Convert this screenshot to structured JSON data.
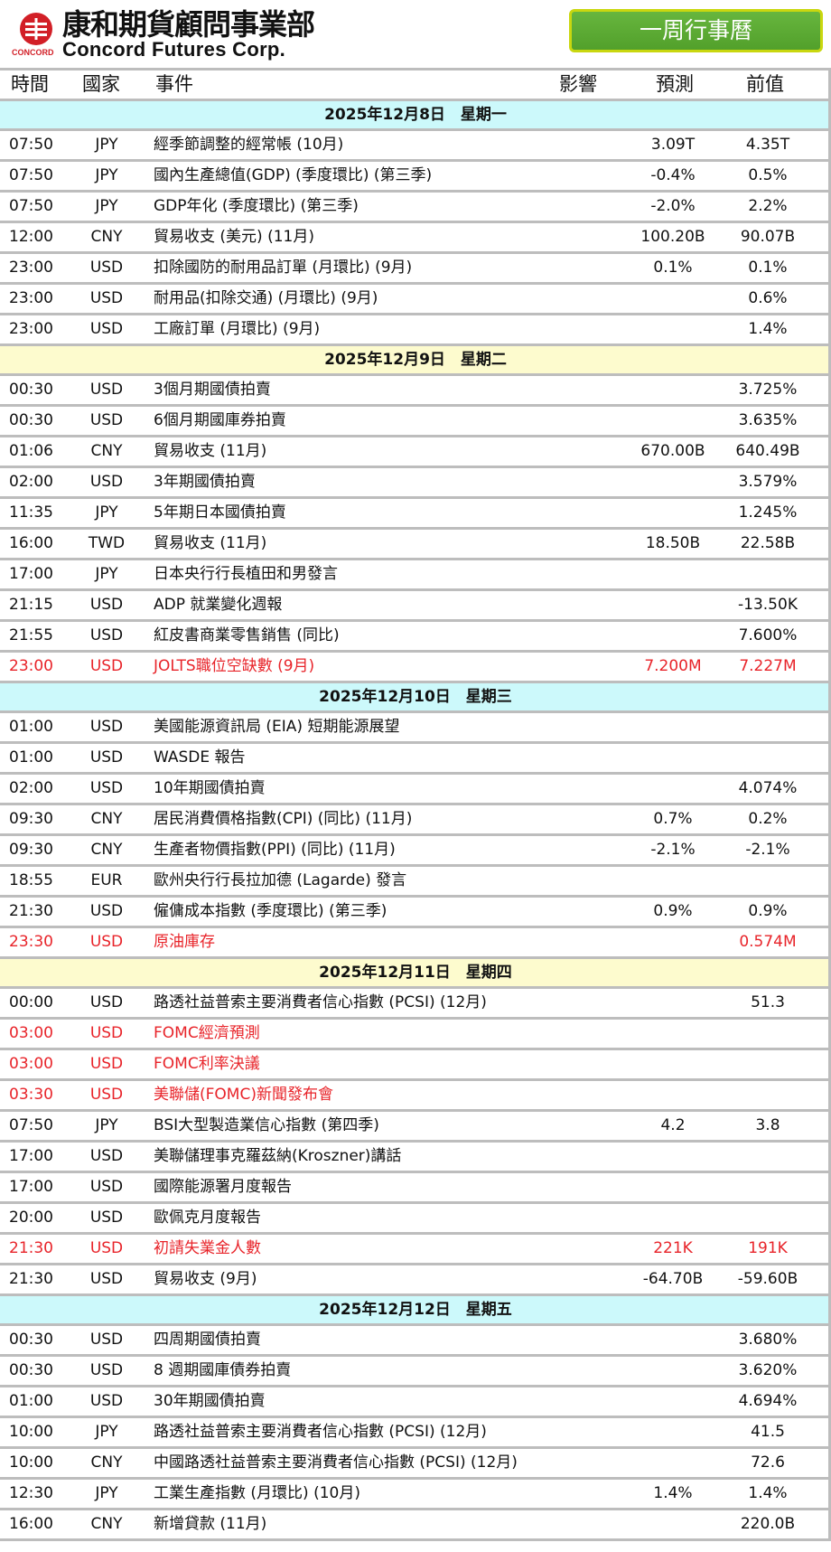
{
  "header": {
    "logo_cn": "康和期貨顧問事業部",
    "logo_en": "Concord Futures Corp.",
    "logo_small": "CONCORD",
    "week_button": "一周行事曆"
  },
  "columns": {
    "time": "時間",
    "country": "國家",
    "event": "事件",
    "impact": "影響",
    "forecast": "預測",
    "previous": "前值"
  },
  "days": [
    {
      "label": "2025年12月8日　星期一",
      "bg": "cyan",
      "rows": [
        {
          "time": "07:50",
          "country": "JPY",
          "event": "經季節調整的經常帳 (10月)",
          "forecast": "3.09T",
          "previous": "4.35T",
          "highlight": false
        },
        {
          "time": "07:50",
          "country": "JPY",
          "event": "國內生產總值(GDP) (季度環比) (第三季)",
          "forecast": "-0.4%",
          "previous": "0.5%",
          "highlight": false
        },
        {
          "time": "07:50",
          "country": "JPY",
          "event": "GDP年化 (季度環比) (第三季)",
          "forecast": "-2.0%",
          "previous": "2.2%",
          "highlight": false
        },
        {
          "time": "12:00",
          "country": "CNY",
          "event": "貿易收支 (美元) (11月)",
          "forecast": "100.20B",
          "previous": "90.07B",
          "highlight": false
        },
        {
          "time": "23:00",
          "country": "USD",
          "event": "扣除國防的耐用品訂單 (月環比) (9月)",
          "forecast": "0.1%",
          "previous": "0.1%",
          "highlight": false
        },
        {
          "time": "23:00",
          "country": "USD",
          "event": "耐用品(扣除交通) (月環比) (9月)",
          "forecast": "",
          "previous": "0.6%",
          "highlight": false
        },
        {
          "time": "23:00",
          "country": "USD",
          "event": "工廠訂單 (月環比) (9月)",
          "forecast": "",
          "previous": "1.4%",
          "highlight": false
        }
      ]
    },
    {
      "label": "2025年12月9日　星期二",
      "bg": "yellow",
      "rows": [
        {
          "time": "00:30",
          "country": "USD",
          "event": "3個月期國債拍賣",
          "forecast": "",
          "previous": "3.725%",
          "highlight": false
        },
        {
          "time": "00:30",
          "country": "USD",
          "event": "6個月期國庫券拍賣",
          "forecast": "",
          "previous": "3.635%",
          "highlight": false
        },
        {
          "time": "01:06",
          "country": "CNY",
          "event": "貿易收支 (11月)",
          "forecast": "670.00B",
          "previous": "640.49B",
          "highlight": false
        },
        {
          "time": "02:00",
          "country": "USD",
          "event": "3年期國債拍賣",
          "forecast": "",
          "previous": "3.579%",
          "highlight": false
        },
        {
          "time": "11:35",
          "country": "JPY",
          "event": "5年期日本國債拍賣",
          "forecast": "",
          "previous": "1.245%",
          "highlight": false
        },
        {
          "time": "16:00",
          "country": "TWD",
          "event": "貿易收支 (11月)",
          "forecast": "18.50B",
          "previous": "22.58B",
          "highlight": false
        },
        {
          "time": "17:00",
          "country": "JPY",
          "event": "日本央行行長植田和男發言",
          "forecast": "",
          "previous": "",
          "highlight": false
        },
        {
          "time": "21:15",
          "country": "USD",
          "event": "ADP 就業變化週報",
          "forecast": "",
          "previous": "-13.50K",
          "highlight": false
        },
        {
          "time": "21:55",
          "country": "USD",
          "event": "紅皮書商業零售銷售 (同比)",
          "forecast": "",
          "previous": "7.600%",
          "highlight": false
        },
        {
          "time": "23:00",
          "country": "USD",
          "event": "JOLTS職位空缺數 (9月)",
          "forecast": "7.200M",
          "previous": "7.227M",
          "highlight": true
        }
      ]
    },
    {
      "label": "2025年12月10日　星期三",
      "bg": "cyan",
      "rows": [
        {
          "time": "01:00",
          "country": "USD",
          "event": "美國能源資訊局 (EIA) 短期能源展望",
          "forecast": "",
          "previous": "",
          "highlight": false
        },
        {
          "time": "01:00",
          "country": "USD",
          "event": "WASDE 報告",
          "forecast": "",
          "previous": "",
          "highlight": false
        },
        {
          "time": "02:00",
          "country": "USD",
          "event": "10年期國債拍賣",
          "forecast": "",
          "previous": "4.074%",
          "highlight": false
        },
        {
          "time": "09:30",
          "country": "CNY",
          "event": "居民消費價格指數(CPI) (同比) (11月)",
          "forecast": "0.7%",
          "previous": "0.2%",
          "highlight": false
        },
        {
          "time": "09:30",
          "country": "CNY",
          "event": "生產者物價指數(PPI) (同比) (11月)",
          "forecast": "-2.1%",
          "previous": "-2.1%",
          "highlight": false
        },
        {
          "time": "18:55",
          "country": "EUR",
          "event": "歐州央行行長拉加德 (Lagarde) 發言",
          "forecast": "",
          "previous": "",
          "highlight": false
        },
        {
          "time": "21:30",
          "country": "USD",
          "event": "僱傭成本指數 (季度環比) (第三季)",
          "forecast": "0.9%",
          "previous": "0.9%",
          "highlight": false
        },
        {
          "time": "23:30",
          "country": "USD",
          "event": "原油庫存",
          "forecast": "",
          "previous": "0.574M",
          "highlight": true
        }
      ]
    },
    {
      "label": "2025年12月11日　星期四",
      "bg": "yellow",
      "rows": [
        {
          "time": "00:00",
          "country": "USD",
          "event": "路透社益普索主要消費者信心指數 (PCSI) (12月)",
          "forecast": "",
          "previous": "51.3",
          "highlight": false
        },
        {
          "time": "03:00",
          "country": "USD",
          "event": "FOMC經濟預測",
          "forecast": "",
          "previous": "",
          "highlight": true
        },
        {
          "time": "03:00",
          "country": "USD",
          "event": "FOMC利率決議",
          "forecast": "",
          "previous": "",
          "highlight": true
        },
        {
          "time": "03:30",
          "country": "USD",
          "event": "美聯儲(FOMC)新聞發布會",
          "forecast": "",
          "previous": "",
          "highlight": true
        },
        {
          "time": "07:50",
          "country": "JPY",
          "event": "BSI大型製造業信心指數 (第四季)",
          "forecast": "4.2",
          "previous": "3.8",
          "highlight": false
        },
        {
          "time": "17:00",
          "country": "USD",
          "event": "美聯儲理事克羅茲納(Kroszner)講話",
          "forecast": "",
          "previous": "",
          "highlight": false
        },
        {
          "time": "17:00",
          "country": "USD",
          "event": "國際能源署月度報告",
          "forecast": "",
          "previous": "",
          "highlight": false
        },
        {
          "time": "20:00",
          "country": "USD",
          "event": "歐佩克月度報告",
          "forecast": "",
          "previous": "",
          "highlight": false
        },
        {
          "time": "21:30",
          "country": "USD",
          "event": "初請失業金人數",
          "forecast": "221K",
          "previous": "191K",
          "highlight": true
        },
        {
          "time": "21:30",
          "country": "USD",
          "event": "貿易收支 (9月)",
          "forecast": "-64.70B",
          "previous": "-59.60B",
          "highlight": false
        }
      ]
    },
    {
      "label": "2025年12月12日　星期五",
      "bg": "cyan",
      "rows": [
        {
          "time": "00:30",
          "country": "USD",
          "event": "四周期國債拍賣",
          "forecast": "",
          "previous": "3.680%",
          "highlight": false
        },
        {
          "time": "00:30",
          "country": "USD",
          "event": "8 週期國庫債券拍賣",
          "forecast": "",
          "previous": "3.620%",
          "highlight": false
        },
        {
          "time": "01:00",
          "country": "USD",
          "event": "30年期國債拍賣",
          "forecast": "",
          "previous": "4.694%",
          "highlight": false
        },
        {
          "time": "10:00",
          "country": "JPY",
          "event": "路透社益普索主要消費者信心指數 (PCSI) (12月)",
          "forecast": "",
          "previous": "41.5",
          "highlight": false
        },
        {
          "time": "10:00",
          "country": "CNY",
          "event": "中國路透社益普索主要消費者信心指數 (PCSI) (12月)",
          "forecast": "",
          "previous": "72.6",
          "highlight": false
        },
        {
          "time": "12:30",
          "country": "JPY",
          "event": "工業生產指數 (月環比) (10月)",
          "forecast": "1.4%",
          "previous": "1.4%",
          "highlight": false
        },
        {
          "time": "16:00",
          "country": "CNY",
          "event": "新增貸款 (11月)",
          "forecast": "",
          "previous": "220.0B",
          "highlight": false
        }
      ]
    }
  ]
}
